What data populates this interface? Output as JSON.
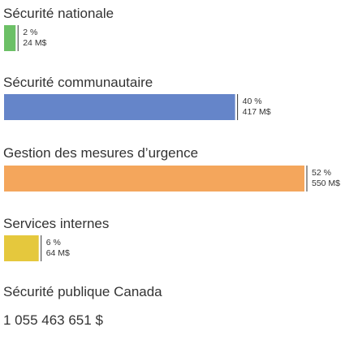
{
  "chart_data": {
    "type": "bar",
    "orientation": "horizontal",
    "grid": false,
    "legend": "none",
    "xlim": [
      0,
      100
    ],
    "categories": [
      "Sécurité nationale",
      "Sécurité communautaire",
      "Gestion des mesures d’urgence",
      "Services internes"
    ],
    "series": [
      {
        "values": [
          2,
          40,
          52,
          6
        ],
        "value_labels": [
          "2 %",
          "40 %",
          "52 %",
          "6 %"
        ],
        "amounts": [
          24,
          417,
          550,
          64
        ],
        "amount_labels": [
          "24 M$",
          "417 M$",
          "550 M$",
          "64 M$"
        ],
        "colors": [
          "#6cc066",
          "#6585c9",
          "#f4a65c",
          "#e5c83d"
        ]
      }
    ]
  },
  "footer": {
    "organization": "Sécurité publique Canada",
    "total": "1 055 463 651 $"
  }
}
